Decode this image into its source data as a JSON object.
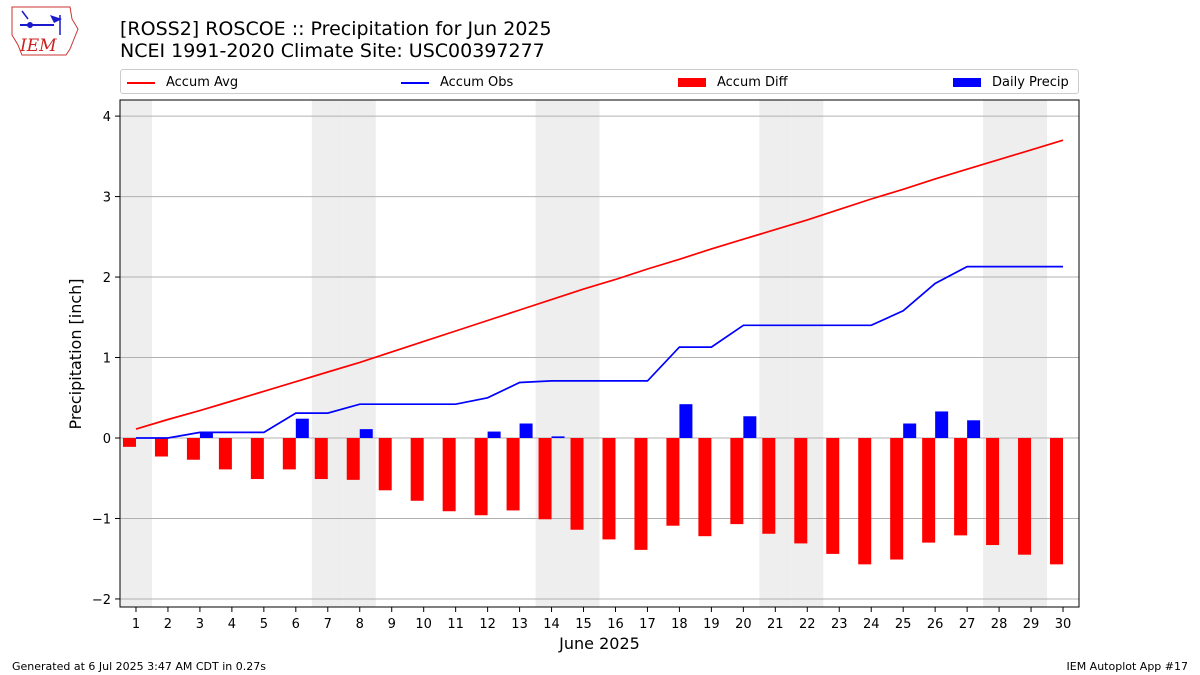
{
  "header": {
    "title_line1": "[ROSS2] ROSCOE :: Precipitation for Jun 2025",
    "title_line2": "NCEI 1991-2020 Climate Site: USC00397277"
  },
  "logo": {
    "text": "IEM"
  },
  "footer": {
    "left": "Generated at 6 Jul 2025 3:47 AM CDT in 0.27s",
    "right": "IEM Autoplot App #17"
  },
  "colors": {
    "avg": "#ff0000",
    "obs": "#0000ff",
    "diff": "#ff0000",
    "daily": "#0000ff",
    "weekend": "#eeeeee",
    "grid": "#b0b0b0"
  },
  "chart_data": {
    "type": "bar",
    "title": "[ROSS2] ROSCOE :: Precipitation for Jun 2025",
    "subtitle": "NCEI 1991-2020 Climate Site: USC00397277",
    "xlabel": "June 2025",
    "ylabel": "Precipitation [inch]",
    "ylim": [
      -2.1,
      4.2
    ],
    "yticks": [
      -2,
      -1,
      0,
      1,
      2,
      3,
      4
    ],
    "ytick_labels": [
      "−2",
      "−1",
      "0",
      "1",
      "2",
      "3",
      "4"
    ],
    "grid": "horizontal",
    "legend_position": "top",
    "x": [
      1,
      2,
      3,
      4,
      5,
      6,
      7,
      8,
      9,
      10,
      11,
      12,
      13,
      14,
      15,
      16,
      17,
      18,
      19,
      20,
      21,
      22,
      23,
      24,
      25,
      26,
      27,
      28,
      29,
      30
    ],
    "x_labels": [
      "1",
      "2",
      "3",
      "4",
      "5",
      "6",
      "7",
      "8",
      "9",
      "10",
      "11",
      "12",
      "13",
      "14",
      "15",
      "16",
      "17",
      "18",
      "19",
      "20",
      "21",
      "22",
      "23",
      "24",
      "25",
      "26",
      "27",
      "28",
      "29",
      "30"
    ],
    "weekend_days": [
      1,
      7,
      8,
      14,
      15,
      21,
      22,
      28,
      29
    ],
    "series": [
      {
        "name": "Accum Avg",
        "kind": "line",
        "color": "#ff0000",
        "values": [
          0.11,
          0.23,
          0.34,
          0.46,
          0.58,
          0.7,
          0.82,
          0.94,
          1.07,
          1.2,
          1.33,
          1.46,
          1.59,
          1.72,
          1.85,
          1.97,
          2.1,
          2.22,
          2.35,
          2.47,
          2.59,
          2.71,
          2.84,
          2.97,
          3.09,
          3.22,
          3.34,
          3.46,
          3.58,
          3.7
        ]
      },
      {
        "name": "Accum Obs",
        "kind": "line",
        "color": "#0000ff",
        "values": [
          0.0,
          0.0,
          0.07,
          0.07,
          0.07,
          0.31,
          0.31,
          0.42,
          0.42,
          0.42,
          0.42,
          0.5,
          0.69,
          0.71,
          0.71,
          0.71,
          0.71,
          1.13,
          1.13,
          1.4,
          1.4,
          1.4,
          1.4,
          1.4,
          1.58,
          1.92,
          2.13,
          2.13,
          2.13,
          2.13
        ]
      },
      {
        "name": "Accum Diff",
        "kind": "bar",
        "color": "#ff0000",
        "values": [
          -0.11,
          -0.23,
          -0.27,
          -0.39,
          -0.51,
          -0.39,
          -0.51,
          -0.52,
          -0.65,
          -0.78,
          -0.91,
          -0.96,
          -0.9,
          -1.01,
          -1.14,
          -1.26,
          -1.39,
          -1.09,
          -1.22,
          -1.07,
          -1.19,
          -1.31,
          -1.44,
          -1.57,
          -1.51,
          -1.3,
          -1.21,
          -1.33,
          -1.45,
          -1.57
        ]
      },
      {
        "name": "Daily Precip",
        "kind": "bar",
        "color": "#0000ff",
        "values": [
          0,
          0,
          0.07,
          0,
          0,
          0.24,
          0,
          0.11,
          0,
          0,
          0,
          0.08,
          0.18,
          0.02,
          0,
          0,
          0,
          0.42,
          0,
          0.27,
          0,
          0,
          0,
          0,
          0.18,
          0.33,
          0.22,
          0,
          0,
          0
        ]
      }
    ]
  }
}
